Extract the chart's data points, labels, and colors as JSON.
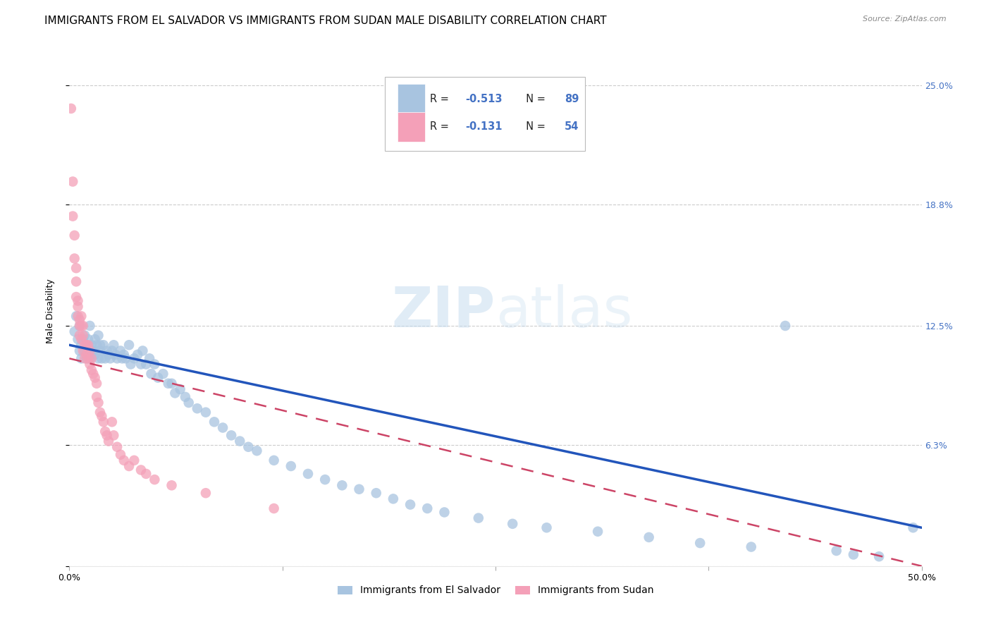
{
  "title": "IMMIGRANTS FROM EL SALVADOR VS IMMIGRANTS FROM SUDAN MALE DISABILITY CORRELATION CHART",
  "source": "Source: ZipAtlas.com",
  "ylabel": "Male Disability",
  "xlim": [
    0.0,
    0.5
  ],
  "ylim": [
    0.0,
    0.265
  ],
  "yticks": [
    0.0,
    0.063,
    0.125,
    0.188,
    0.25
  ],
  "ytick_labels": [
    "",
    "6.3%",
    "12.5%",
    "18.8%",
    "25.0%"
  ],
  "xticks": [
    0.0,
    0.125,
    0.25,
    0.375,
    0.5
  ],
  "xtick_labels": [
    "0.0%",
    "",
    "",
    "",
    "50.0%"
  ],
  "el_salvador_R": -0.513,
  "el_salvador_N": 89,
  "sudan_R": -0.131,
  "sudan_N": 54,
  "el_salvador_color": "#a8c4e0",
  "sudan_color": "#f4a0b8",
  "el_salvador_line_color": "#2255bb",
  "sudan_line_color": "#cc4466",
  "background_color": "#ffffff",
  "grid_color": "#cccccc",
  "watermark_zip": "ZIP",
  "watermark_atlas": "atlas",
  "title_fontsize": 11,
  "axis_label_fontsize": 9,
  "tick_fontsize": 9,
  "right_tick_color": "#4472c4",
  "el_salvador_x": [
    0.003,
    0.004,
    0.005,
    0.006,
    0.006,
    0.007,
    0.007,
    0.008,
    0.009,
    0.009,
    0.01,
    0.01,
    0.011,
    0.011,
    0.012,
    0.012,
    0.013,
    0.013,
    0.014,
    0.015,
    0.015,
    0.016,
    0.017,
    0.017,
    0.018,
    0.018,
    0.019,
    0.02,
    0.021,
    0.022,
    0.023,
    0.024,
    0.025,
    0.026,
    0.027,
    0.028,
    0.03,
    0.031,
    0.032,
    0.033,
    0.035,
    0.036,
    0.038,
    0.04,
    0.042,
    0.043,
    0.045,
    0.047,
    0.048,
    0.05,
    0.052,
    0.055,
    0.058,
    0.06,
    0.062,
    0.065,
    0.068,
    0.07,
    0.075,
    0.08,
    0.085,
    0.09,
    0.095,
    0.1,
    0.105,
    0.11,
    0.12,
    0.13,
    0.14,
    0.15,
    0.16,
    0.17,
    0.18,
    0.19,
    0.2,
    0.21,
    0.22,
    0.24,
    0.26,
    0.28,
    0.31,
    0.34,
    0.37,
    0.4,
    0.42,
    0.45,
    0.46,
    0.475,
    0.495
  ],
  "el_salvador_y": [
    0.122,
    0.13,
    0.118,
    0.112,
    0.125,
    0.115,
    0.108,
    0.118,
    0.112,
    0.12,
    0.115,
    0.108,
    0.118,
    0.112,
    0.125,
    0.108,
    0.115,
    0.11,
    0.112,
    0.118,
    0.11,
    0.115,
    0.108,
    0.12,
    0.112,
    0.115,
    0.108,
    0.115,
    0.108,
    0.112,
    0.11,
    0.108,
    0.112,
    0.115,
    0.11,
    0.108,
    0.112,
    0.108,
    0.11,
    0.108,
    0.115,
    0.105,
    0.108,
    0.11,
    0.105,
    0.112,
    0.105,
    0.108,
    0.1,
    0.105,
    0.098,
    0.1,
    0.095,
    0.095,
    0.09,
    0.092,
    0.088,
    0.085,
    0.082,
    0.08,
    0.075,
    0.072,
    0.068,
    0.065,
    0.062,
    0.06,
    0.055,
    0.052,
    0.048,
    0.045,
    0.042,
    0.04,
    0.038,
    0.035,
    0.032,
    0.03,
    0.028,
    0.025,
    0.022,
    0.02,
    0.018,
    0.015,
    0.012,
    0.01,
    0.125,
    0.008,
    0.006,
    0.005,
    0.02
  ],
  "sudan_x": [
    0.001,
    0.002,
    0.002,
    0.003,
    0.003,
    0.004,
    0.004,
    0.004,
    0.005,
    0.005,
    0.005,
    0.006,
    0.006,
    0.006,
    0.007,
    0.007,
    0.007,
    0.008,
    0.008,
    0.008,
    0.009,
    0.009,
    0.01,
    0.01,
    0.011,
    0.011,
    0.012,
    0.012,
    0.013,
    0.013,
    0.014,
    0.015,
    0.016,
    0.016,
    0.017,
    0.018,
    0.019,
    0.02,
    0.021,
    0.022,
    0.023,
    0.025,
    0.026,
    0.028,
    0.03,
    0.032,
    0.035,
    0.038,
    0.042,
    0.045,
    0.05,
    0.06,
    0.08,
    0.12
  ],
  "sudan_y": [
    0.238,
    0.2,
    0.182,
    0.172,
    0.16,
    0.155,
    0.148,
    0.14,
    0.138,
    0.135,
    0.13,
    0.128,
    0.125,
    0.12,
    0.13,
    0.125,
    0.118,
    0.125,
    0.12,
    0.112,
    0.115,
    0.108,
    0.115,
    0.11,
    0.115,
    0.108,
    0.112,
    0.105,
    0.108,
    0.102,
    0.1,
    0.098,
    0.095,
    0.088,
    0.085,
    0.08,
    0.078,
    0.075,
    0.07,
    0.068,
    0.065,
    0.075,
    0.068,
    0.062,
    0.058,
    0.055,
    0.052,
    0.055,
    0.05,
    0.048,
    0.045,
    0.042,
    0.038,
    0.03
  ]
}
